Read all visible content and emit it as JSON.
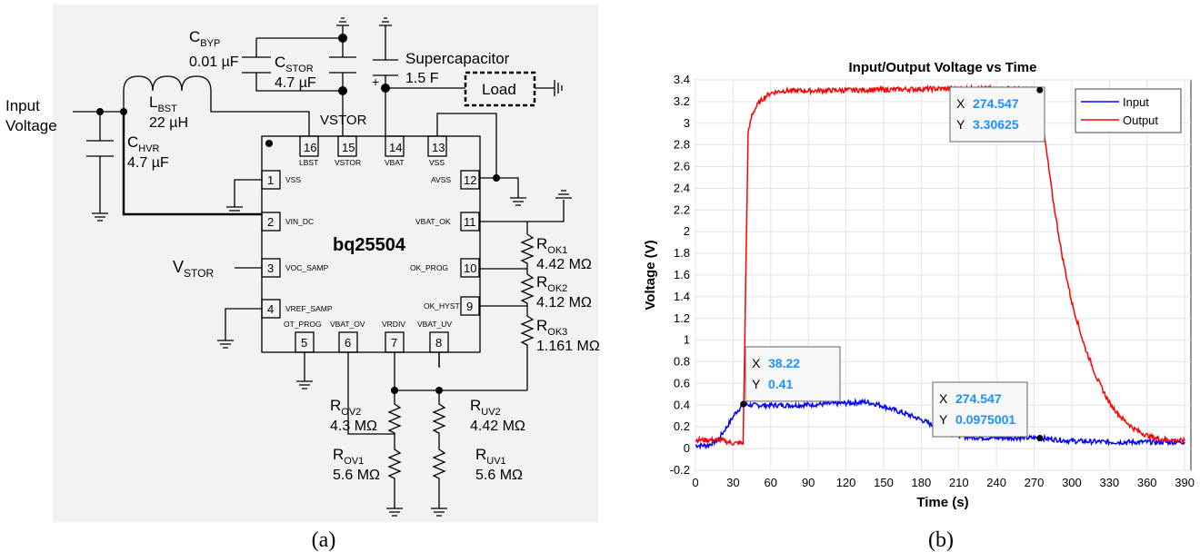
{
  "panel_a": {
    "caption": "(a)",
    "chip_name": "bq25504",
    "input_label_line1": "Input",
    "input_label_line2": "Voltage",
    "vstor_label": "VSTOR",
    "vstor_ext": {
      "main": "V",
      "sub": "STOR"
    },
    "supercap_label": "Supercapacitor",
    "supercap_value": "1.5 F",
    "load_label": "Load",
    "plus_sign": "+",
    "components": {
      "cbyp": {
        "main": "C",
        "sub": "BYP",
        "value": "0.01 µF"
      },
      "cstor": {
        "main": "C",
        "sub": "STOR",
        "value": "4.7 µF"
      },
      "lbst": {
        "main": "L",
        "sub": "BST",
        "value": "22 µH"
      },
      "chvr": {
        "main": "C",
        "sub": "HVR",
        "value": "4.7 µF"
      },
      "rok1": {
        "main": "R",
        "sub": "OK1",
        "value": "4.42 MΩ"
      },
      "rok2": {
        "main": "R",
        "sub": "OK2",
        "value": "4.12 MΩ"
      },
      "rok3": {
        "main": "R",
        "sub": "OK3",
        "value": "1.161 MΩ"
      },
      "rov2": {
        "main": "R",
        "sub": "OV2",
        "value": "4.3 MΩ"
      },
      "rov1": {
        "main": "R",
        "sub": "OV1",
        "value": "5.6 MΩ"
      },
      "ruv2": {
        "main": "R",
        "sub": "UV2",
        "value": "4.42 MΩ"
      },
      "ruv1": {
        "main": "R",
        "sub": "UV1",
        "value": "5.6 MΩ"
      }
    },
    "pins": [
      {
        "num": "1",
        "name": "VSS"
      },
      {
        "num": "2",
        "name": "VIN_DC"
      },
      {
        "num": "3",
        "name": "VOC_SAMP"
      },
      {
        "num": "4",
        "name": "VREF_SAMP"
      },
      {
        "num": "5",
        "name": "OT_PROG"
      },
      {
        "num": "6",
        "name": "VBAT_OV"
      },
      {
        "num": "7",
        "name": "VRDIV"
      },
      {
        "num": "8",
        "name": "VBAT_UV"
      },
      {
        "num": "9",
        "name": "OK_HYST"
      },
      {
        "num": "10",
        "name": "OK_PROG"
      },
      {
        "num": "11",
        "name": "VBAT_OK"
      },
      {
        "num": "12",
        "name": "AVSS"
      },
      {
        "num": "13",
        "name": "VSS"
      },
      {
        "num": "14",
        "name": "VBAT"
      },
      {
        "num": "15",
        "name": "VSTOR"
      },
      {
        "num": "16",
        "name": "LBST"
      }
    ]
  },
  "panel_b": {
    "caption": "(b)",
    "datatips": [
      {
        "x_label": "X",
        "x_value": "274.547",
        "y_label": "Y",
        "y_value": "3.30625"
      },
      {
        "x_label": "X",
        "x_value": "38.22",
        "y_label": "Y",
        "y_value": "0.41"
      },
      {
        "x_label": "X",
        "x_value": "274.547",
        "y_label": "Y",
        "y_value": "0.0975001"
      }
    ]
  },
  "colors": {
    "input": "#0000ff",
    "output": "#ff0000",
    "datatip_value": "#1e90ff"
  },
  "chart_data": {
    "type": "line",
    "title": "Input/Output Voltage vs Time",
    "xlabel": "Time (s)",
    "ylabel": "Voltage (V)",
    "xlim": [
      0,
      395
    ],
    "ylim": [
      -0.2,
      3.4
    ],
    "xticks": [
      0,
      30,
      60,
      90,
      120,
      150,
      180,
      210,
      240,
      270,
      300,
      330,
      360,
      390
    ],
    "yticks": [
      -0.2,
      0,
      0.2,
      0.4,
      0.6,
      0.8,
      1,
      1.2,
      1.4,
      1.6,
      1.8,
      2,
      2.2,
      2.4,
      2.6,
      2.8,
      3,
      3.2,
      3.4
    ],
    "grid": true,
    "legend": "top-right",
    "series": [
      {
        "name": "Input",
        "x": [
          0,
          10,
          18,
          25,
          32,
          38.22,
          45,
          60,
          80,
          100,
          120,
          135,
          145,
          155,
          165,
          175,
          185,
          195,
          205,
          215,
          230,
          250,
          274.547,
          300,
          330,
          360,
          390
        ],
        "y": [
          0.03,
          0.03,
          0.08,
          0.2,
          0.33,
          0.41,
          0.4,
          0.4,
          0.4,
          0.41,
          0.42,
          0.43,
          0.41,
          0.37,
          0.33,
          0.29,
          0.24,
          0.18,
          0.14,
          0.11,
          0.1,
          0.1,
          0.0975,
          0.07,
          0.06,
          0.06,
          0.06
        ]
      },
      {
        "name": "Output",
        "x": [
          0,
          20,
          30,
          38,
          40,
          42,
          45,
          50,
          55,
          60,
          70,
          90,
          150,
          200,
          250,
          274.547,
          278,
          285,
          292,
          300,
          310,
          320,
          330,
          340,
          350,
          360,
          370,
          380,
          390
        ],
        "y": [
          0.08,
          0.08,
          0.05,
          0.05,
          1.5,
          2.9,
          3.08,
          3.18,
          3.24,
          3.28,
          3.3,
          3.3,
          3.31,
          3.32,
          3.32,
          3.30625,
          2.9,
          2.3,
          1.8,
          1.35,
          0.95,
          0.65,
          0.42,
          0.28,
          0.18,
          0.12,
          0.09,
          0.08,
          0.07
        ]
      }
    ]
  }
}
